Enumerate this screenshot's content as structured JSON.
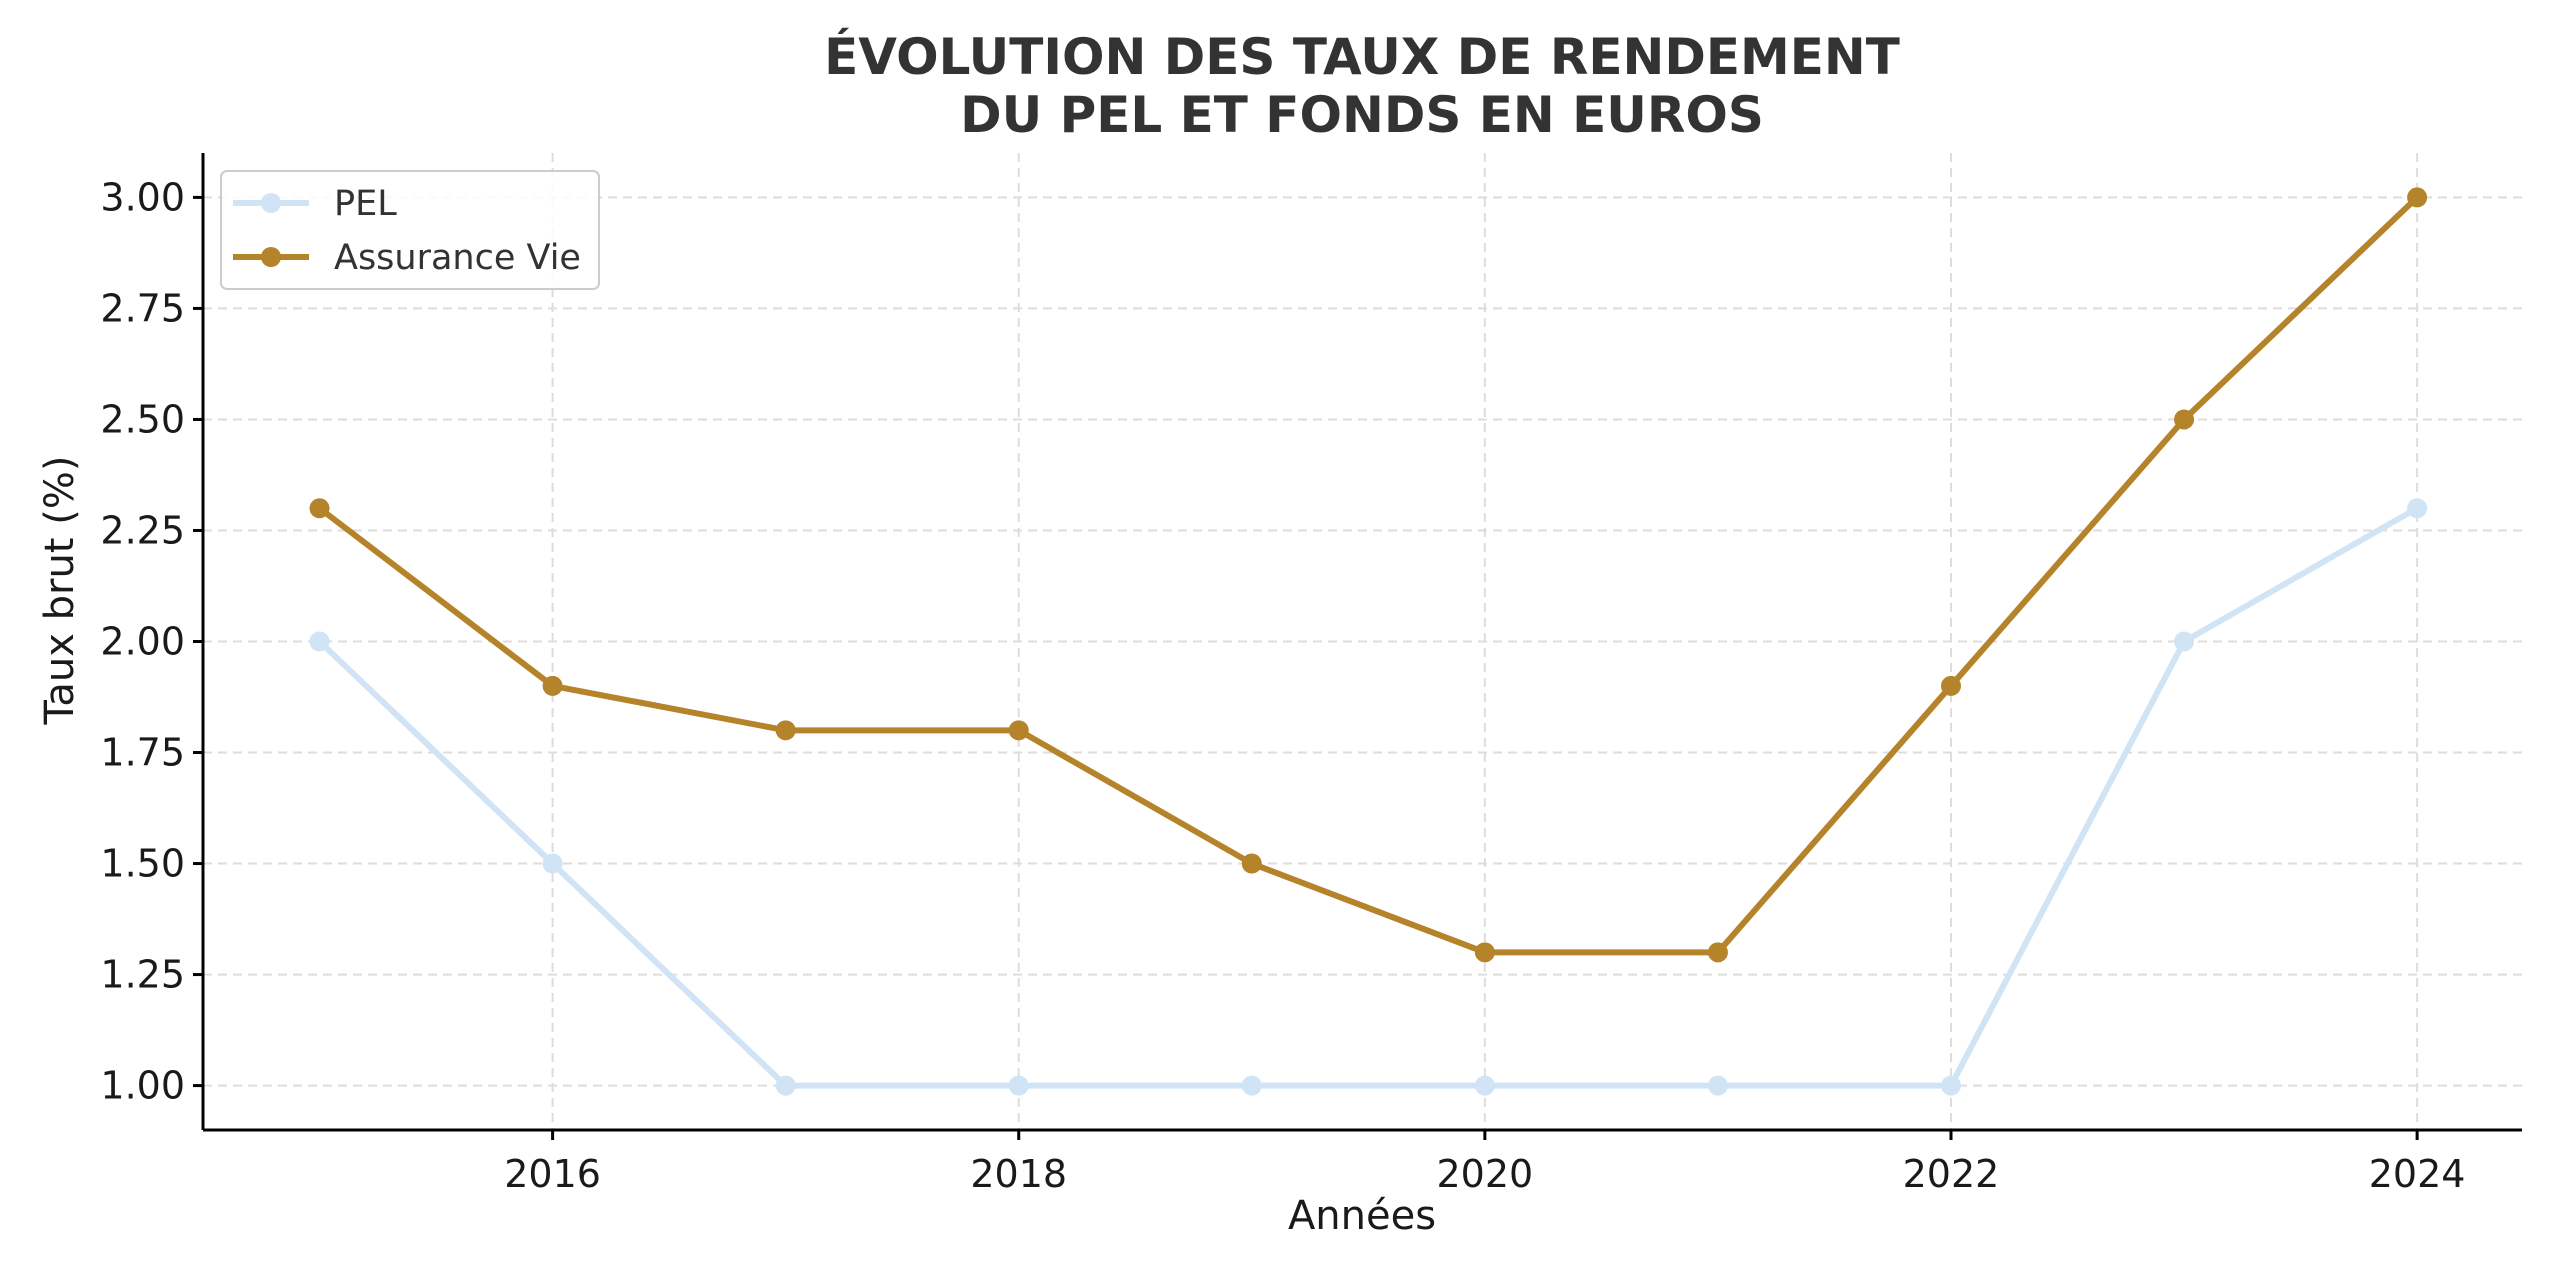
{
  "chart_data": {
    "type": "line",
    "title_lines": [
      "ÉVOLUTION DES TAUX DE RENDEMENT",
      "DU PEL ET FONDS EN EUROS"
    ],
    "xlabel": "Années",
    "ylabel": "Taux brut (%)",
    "x": [
      2015,
      2016,
      2017,
      2018,
      2019,
      2020,
      2021,
      2022,
      2023,
      2024
    ],
    "xlim": [
      2014.5,
      2024.45
    ],
    "ylim": [
      0.9,
      3.1
    ],
    "xticks": [
      2016,
      2018,
      2020,
      2022,
      2024
    ],
    "yticks": [
      1.0,
      1.25,
      1.5,
      1.75,
      2.0,
      2.25,
      2.5,
      2.75,
      3.0
    ],
    "grid": true,
    "legend_position": "top-left",
    "series": [
      {
        "name": "PEL",
        "color": "#d0e4f5",
        "values": [
          2.0,
          1.5,
          1.0,
          1.0,
          1.0,
          1.0,
          1.0,
          1.0,
          2.0,
          2.3
        ]
      },
      {
        "name": "Assurance Vie",
        "color": "#b5832a",
        "values": [
          2.3,
          1.9,
          1.8,
          1.8,
          1.5,
          1.3,
          1.3,
          1.9,
          2.5,
          3.0
        ]
      }
    ]
  }
}
